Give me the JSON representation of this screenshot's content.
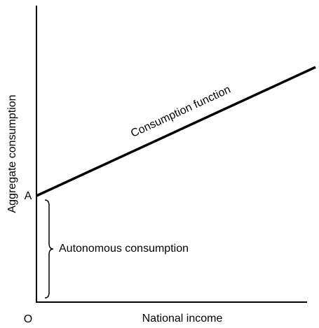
{
  "axes": {
    "y_label": "Aggregate consumption",
    "x_label": "National income",
    "origin": "O",
    "intercept": "A"
  },
  "labels": {
    "line": "Consumption function",
    "brace": "Autonomous consumption"
  }
}
